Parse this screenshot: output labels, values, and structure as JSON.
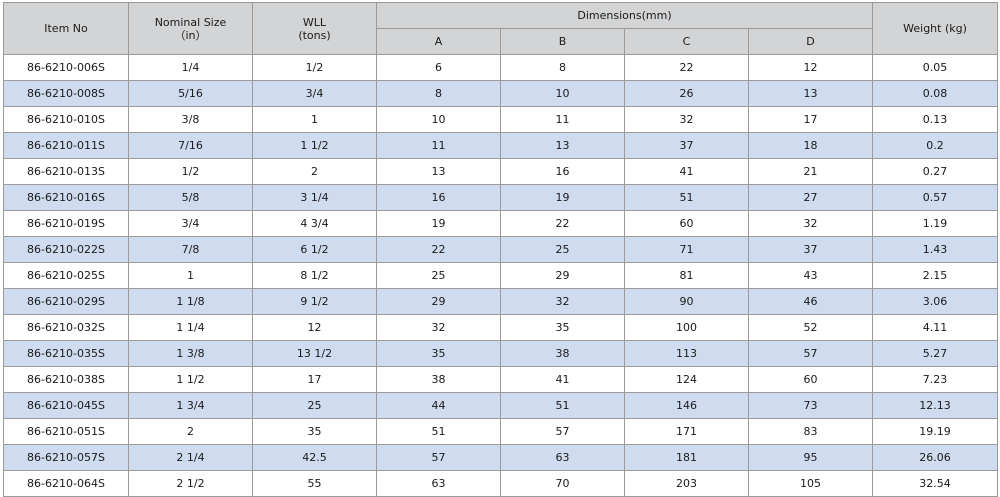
{
  "headers": {
    "item_no": "Item No",
    "nominal_size": "Nominal Size",
    "nominal_size_unit": "（in）",
    "wll": "WLL",
    "wll_unit": "(tons)",
    "dimensions": "Dimensions(mm)",
    "a": "A",
    "b": "B",
    "c": "C",
    "d": "D",
    "weight": "Weight (kg)"
  },
  "rows": [
    [
      "86-6210-006S",
      "1/4",
      "1/2",
      "6",
      "8",
      "22",
      "12",
      "0.05"
    ],
    [
      "86-6210-008S",
      "5/16",
      "3/4",
      "8",
      "10",
      "26",
      "13",
      "0.08"
    ],
    [
      "86-6210-010S",
      "3/8",
      "1",
      "10",
      "11",
      "32",
      "17",
      "0.13"
    ],
    [
      "86-6210-011S",
      "7/16",
      "1 1/2",
      "11",
      "13",
      "37",
      "18",
      "0.2"
    ],
    [
      "86-6210-013S",
      "1/2",
      "2",
      "13",
      "16",
      "41",
      "21",
      "0.27"
    ],
    [
      "86-6210-016S",
      "5/8",
      "3 1/4",
      "16",
      "19",
      "51",
      "27",
      "0.57"
    ],
    [
      "86-6210-019S",
      "3/4",
      "4 3/4",
      "19",
      "22",
      "60",
      "32",
      "1.19"
    ],
    [
      "86-6210-022S",
      "7/8",
      "6 1/2",
      "22",
      "25",
      "71",
      "37",
      "1.43"
    ],
    [
      "86-6210-025S",
      "1",
      "8 1/2",
      "25",
      "29",
      "81",
      "43",
      "2.15"
    ],
    [
      "86-6210-029S",
      "1 1/8",
      "9 1/2",
      "29",
      "32",
      "90",
      "46",
      "3.06"
    ],
    [
      "86-6210-032S",
      "1 1/4",
      "12",
      "32",
      "35",
      "100",
      "52",
      "4.11"
    ],
    [
      "86-6210-035S",
      "1 3/8",
      "13 1/2",
      "35",
      "38",
      "113",
      "57",
      "5.27"
    ],
    [
      "86-6210-038S",
      "1 1/2",
      "17",
      "38",
      "41",
      "124",
      "60",
      "7.23"
    ],
    [
      "86-6210-045S",
      "1 3/4",
      "25",
      "44",
      "51",
      "146",
      "73",
      "12.13"
    ],
    [
      "86-6210-051S",
      "2",
      "35",
      "51",
      "57",
      "171",
      "83",
      "19.19"
    ],
    [
      "86-6210-057S",
      "2 1/4",
      "42.5",
      "57",
      "63",
      "181",
      "95",
      "26.06"
    ],
    [
      "86-6210-064S",
      "2 1/2",
      "55",
      "63",
      "70",
      "203",
      "105",
      "32.54"
    ]
  ],
  "colors": {
    "header_bg": "#d3d4d6",
    "alt_row_bg": "#cfdcf0",
    "border": "#9a9a9a"
  }
}
